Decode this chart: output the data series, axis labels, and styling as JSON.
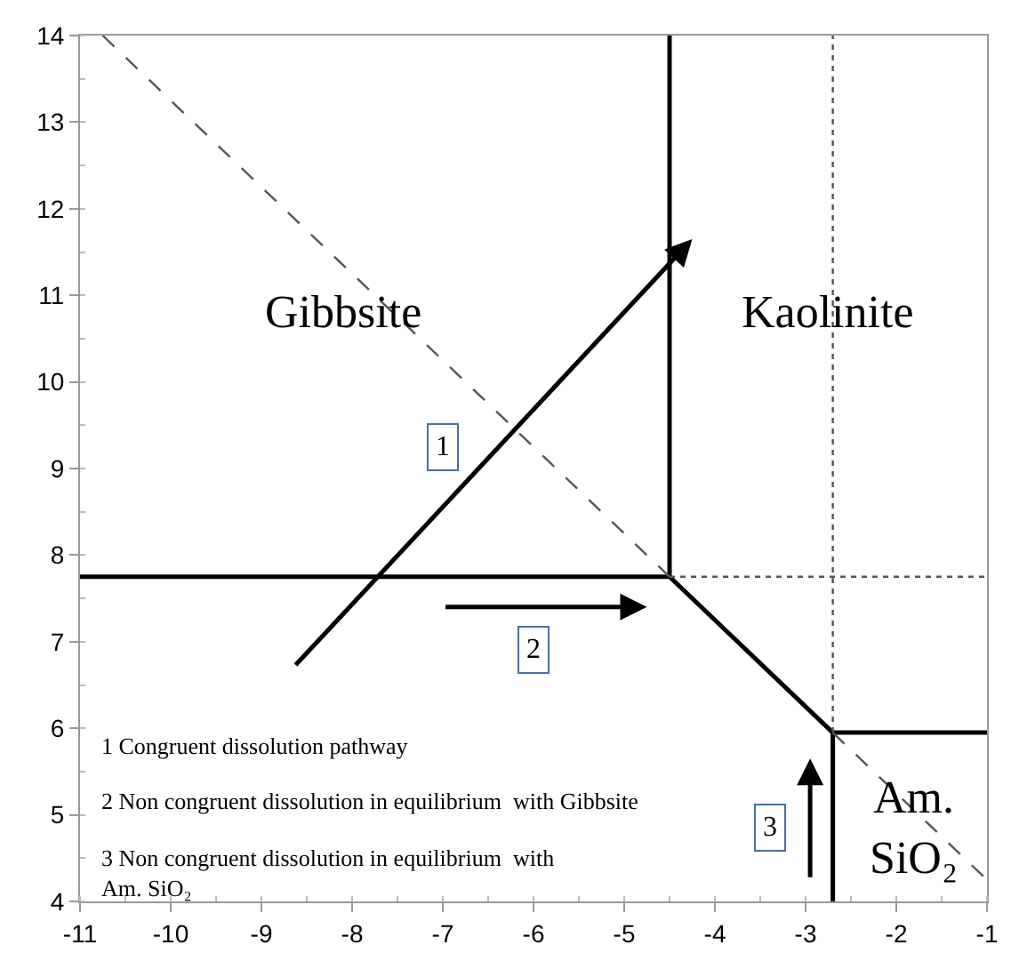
{
  "chart_data": {
    "type": "line",
    "xlim": [
      -11,
      -1
    ],
    "ylim": [
      4,
      14
    ],
    "xticks": [
      -11,
      -10,
      -9,
      -8,
      -7,
      -6,
      -5,
      -4,
      -3,
      -2,
      -1
    ],
    "yticks": [
      4,
      5,
      6,
      7,
      8,
      9,
      10,
      11,
      12,
      13,
      14
    ],
    "marker": "none",
    "series": [
      {
        "color": "#000000",
        "line_style": "solid",
        "x": [
          -11,
          -4.5
        ],
        "values": [
          7.75,
          7.75
        ]
      },
      {
        "color": "#000000",
        "line_style": "solid",
        "x": [
          -4.5,
          -4.5
        ],
        "values": [
          7.75,
          14
        ]
      },
      {
        "color": "#000000",
        "line_style": "solid",
        "x": [
          -4.5,
          -2.7
        ],
        "values": [
          7.75,
          5.95
        ]
      },
      {
        "color": "#000000",
        "line_style": "solid",
        "x": [
          -2.7,
          -1
        ],
        "values": [
          5.95,
          5.95
        ]
      },
      {
        "color": "#000000",
        "line_style": "solid",
        "x": [
          -2.7,
          -2.7
        ],
        "values": [
          4,
          5.95
        ]
      },
      {
        "color": "#555555",
        "line_style": "dotted",
        "x": [
          -2.7,
          -2.7
        ],
        "values": [
          5.95,
          14
        ]
      },
      {
        "color": "#555555",
        "line_style": "dotted",
        "x": [
          -4.5,
          -1
        ],
        "values": [
          7.75,
          7.75
        ]
      },
      {
        "color": "#555555",
        "line_style": "dashed",
        "x": [
          -10.75,
          -4.5,
          -3.6,
          -2.7,
          -1
        ],
        "values": [
          14,
          7.75,
          null,
          5.95,
          4.25
        ]
      }
    ],
    "annotations": [
      "Gibbsite",
      "Kaolinite",
      "Am.\nSiO₂",
      {
        "text": "1",
        "x": -7.0,
        "y": 9.25
      },
      {
        "text": "2",
        "x": -6.0,
        "y": 6.9
      },
      {
        "text": "3",
        "x": -3.4,
        "y": 4.85
      },
      "1 Congruent dissolution pathway",
      "2 Non congruent dissolution in equilibrium  with Gibbsite",
      "3 Non congruent dissolution in equilibrium  with\nAm. SiO₂"
    ]
  }
}
